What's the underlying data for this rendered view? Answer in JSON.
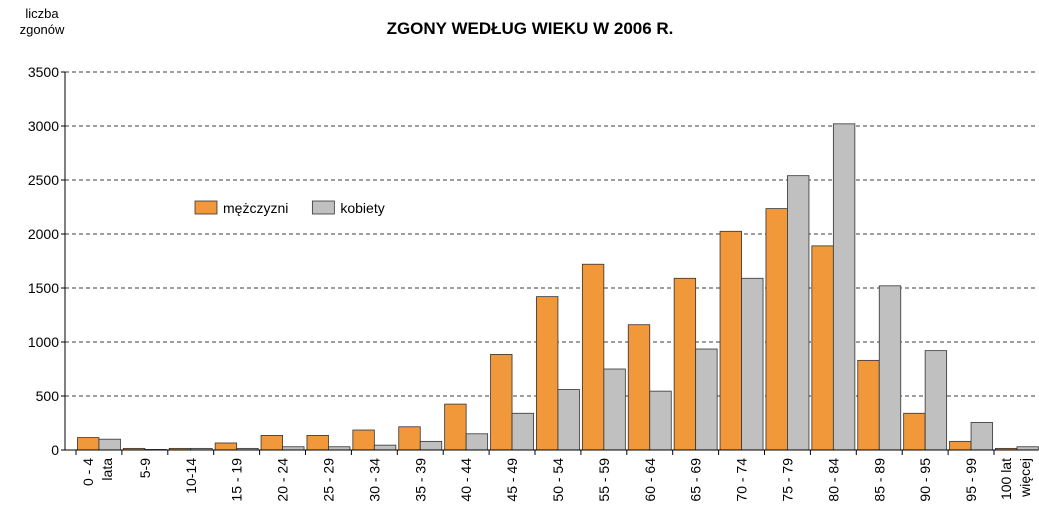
{
  "chart_data": {
    "type": "bar",
    "title": "ZGONY WEDŁUG WIEKU W 2006 R.",
    "y_label": "liczba zgonów",
    "categories": [
      "0 - 4 lata",
      "5-9",
      "10-14",
      "15 - 19",
      "20 - 24",
      "25 - 29",
      "30 - 34",
      "35 - 39",
      "40 - 44",
      "45 - 49",
      "50 - 54",
      "55 - 59",
      "60 - 64",
      "65 - 69",
      "70 - 74",
      "75 - 79",
      "80 - 84",
      "85 - 89",
      "90 - 95",
      "95 - 99",
      "100 lat więcej"
    ],
    "series": [
      {
        "name": "mężczyzni",
        "color": "#f0983a",
        "values": [
          115,
          15,
          15,
          65,
          135,
          135,
          185,
          215,
          425,
          885,
          1420,
          1720,
          1160,
          1590,
          2025,
          2235,
          1890,
          830,
          340,
          80,
          15
        ]
      },
      {
        "name": "kobiety",
        "color": "#c0c0c0",
        "values": [
          100,
          5,
          15,
          15,
          30,
          30,
          45,
          80,
          150,
          340,
          560,
          750,
          545,
          935,
          1590,
          2540,
          3020,
          1520,
          920,
          255,
          30
        ]
      }
    ],
    "ylim": [
      0,
      3500
    ],
    "yticks": [
      0,
      500,
      1000,
      1500,
      2000,
      2500,
      3000,
      3500
    ],
    "grid": true
  }
}
